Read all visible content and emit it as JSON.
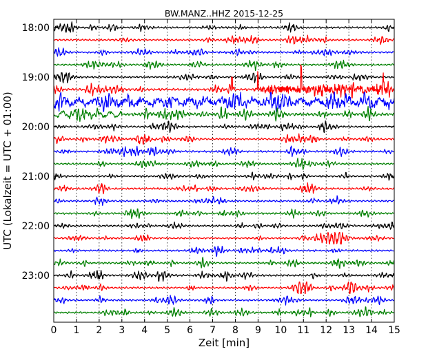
{
  "chart_data": {
    "type": "line",
    "title": "BW.MANZ..HHZ 2015-12-25",
    "xlabel": "Zeit  [min]",
    "ylabel": "UTC (Lokalzeit = UTC + 01:00)",
    "xlim": [
      0,
      15
    ],
    "x_ticks": [
      0,
      1,
      2,
      3,
      4,
      5,
      6,
      7,
      8,
      9,
      10,
      11,
      12,
      13,
      14,
      15
    ],
    "x_tick_labels": [
      "0",
      "1",
      "2",
      "3",
      "4",
      "5",
      "6",
      "7",
      "8",
      "9",
      "10",
      "11",
      "12",
      "13",
      "14",
      "15"
    ],
    "y_tick_labels": [
      "18:00",
      "19:00",
      "20:00",
      "21:00",
      "22:00",
      "23:00"
    ],
    "grid": true,
    "color_cycle": [
      "#000000",
      "#ff0000",
      "#0000ff",
      "#008000"
    ],
    "series": [
      {
        "start": "18:00",
        "amplitude": 1.0,
        "event": null
      },
      {
        "start": "18:15",
        "amplitude": 1.0,
        "event": null
      },
      {
        "start": "18:30",
        "amplitude": 1.0,
        "event": null
      },
      {
        "start": "18:45",
        "amplitude": 1.0,
        "event": null
      },
      {
        "start": "19:00",
        "amplitude": 1.0,
        "event": null
      },
      {
        "start": "19:15",
        "amplitude": 1.3,
        "event": "spikes"
      },
      {
        "start": "19:30",
        "amplitude": 2.2,
        "event": "noisy"
      },
      {
        "start": "19:45",
        "amplitude": 1.5,
        "event": "early-noisy"
      },
      {
        "start": "20:00",
        "amplitude": 1.0,
        "event": null
      },
      {
        "start": "20:15",
        "amplitude": 1.0,
        "event": null
      },
      {
        "start": "20:30",
        "amplitude": 1.0,
        "event": null
      },
      {
        "start": "20:45",
        "amplitude": 1.0,
        "event": null
      },
      {
        "start": "21:00",
        "amplitude": 1.0,
        "event": null
      },
      {
        "start": "21:15",
        "amplitude": 1.0,
        "event": null
      },
      {
        "start": "21:30",
        "amplitude": 1.0,
        "event": null
      },
      {
        "start": "21:45",
        "amplitude": 1.0,
        "event": null
      },
      {
        "start": "22:00",
        "amplitude": 1.0,
        "event": null
      },
      {
        "start": "22:15",
        "amplitude": 1.0,
        "event": null
      },
      {
        "start": "22:30",
        "amplitude": 1.0,
        "event": null
      },
      {
        "start": "22:45",
        "amplitude": 1.0,
        "event": null
      },
      {
        "start": "23:00",
        "amplitude": 1.0,
        "event": null
      },
      {
        "start": "23:15",
        "amplitude": 1.0,
        "event": null
      },
      {
        "start": "23:30",
        "amplitude": 1.0,
        "event": null
      },
      {
        "start": "23:45",
        "amplitude": 1.0,
        "event": null
      }
    ]
  }
}
